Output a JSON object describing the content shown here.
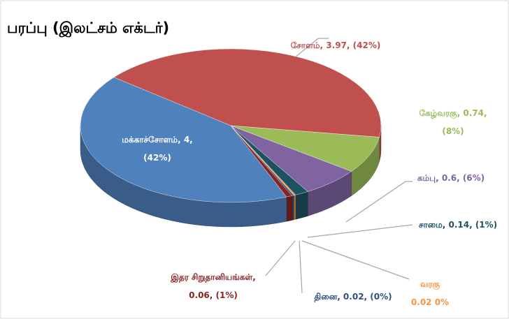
{
  "chart_data": {
    "type": "pie",
    "title": "பரப்பு (இலட்சம் எக்டர்)",
    "categories": [
      "சோளம்",
      "கேழ்வரகு",
      "கம்பு",
      "சாமை",
      "வரகு",
      "தினை",
      "இதர சிறுதானியங்கள்",
      "மக்காச்சோளம்"
    ],
    "values": [
      3.97,
      0.74,
      0.6,
      0.14,
      0.02,
      0.02,
      0.06,
      4
    ],
    "value_labels": [
      "சோளம், 3.97, (42%)",
      "கேழ்வரகு, 0.74, (8%)",
      "கம்பு, 0.6, (6%)",
      "சாமை, 0.14, (1%)",
      "வரகு 0.02 0%",
      "தினை, 0.02, (0%)",
      "இதர சிறுதானியங்கள், 0.06, (1%)",
      "மக்காச்சோளம், 4, (42%)"
    ],
    "colors": [
      "#c0504d",
      "#9bbb59",
      "#8064a2",
      "#1d5360",
      "#f79646",
      "#2f4f80",
      "#8b2323",
      "#4f81bd"
    ],
    "label_colors": [
      "#c0504d",
      "#9bbb59",
      "#8064a2",
      "#1d5360",
      "#f79646",
      "#2f4f80",
      "#8b2323",
      "#ffffff"
    ]
  }
}
